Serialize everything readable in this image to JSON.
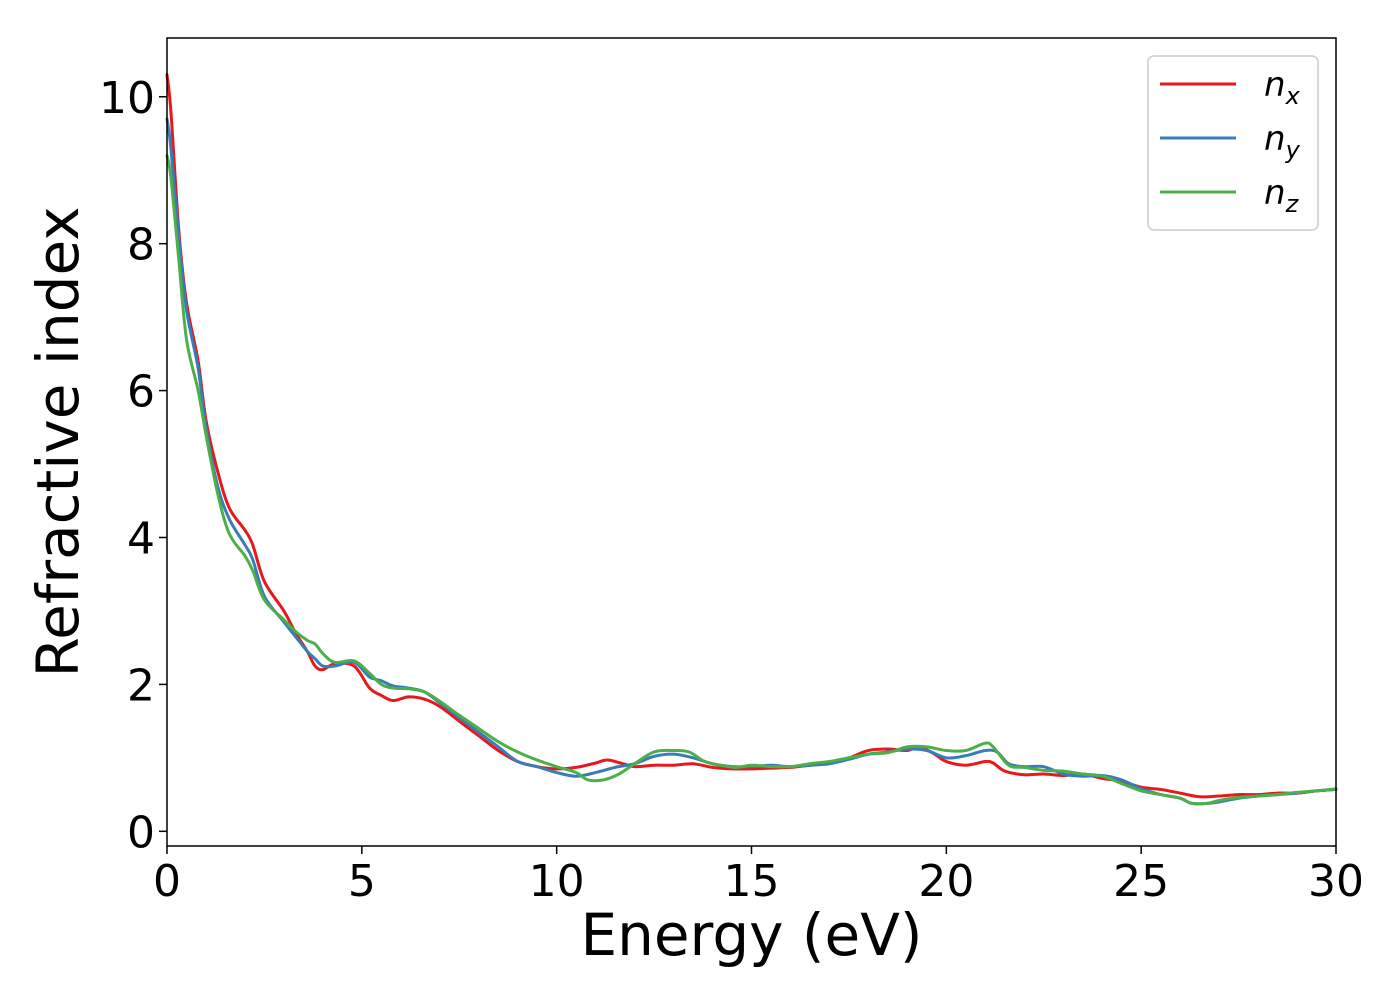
{
  "chart_data": {
    "type": "line",
    "title": "",
    "xlabel": "Energy (eV)",
    "ylabel": "Refractive index",
    "xlim": [
      0,
      30
    ],
    "ylim": [
      -0.2,
      10.8
    ],
    "xticks": [
      0,
      5,
      10,
      15,
      20,
      25,
      30
    ],
    "yticks": [
      0,
      2,
      4,
      6,
      8,
      10
    ],
    "xtick_labels": [
      "0",
      "5",
      "10",
      "15",
      "20",
      "25",
      "30"
    ],
    "ytick_labels": [
      "0",
      "2",
      "4",
      "6",
      "8",
      "10"
    ],
    "grid": false,
    "legend_position": "top-right",
    "series": [
      {
        "name": "n",
        "subscript": "x",
        "color": "#e41a1c",
        "x": [
          0,
          0.1,
          0.3,
          0.5,
          0.8,
          1.0,
          1.3,
          1.6,
          2.0,
          2.2,
          2.5,
          3.0,
          3.3,
          3.6,
          3.8,
          4.0,
          4.3,
          4.8,
          5.2,
          5.5,
          5.8,
          6.2,
          6.6,
          7.0,
          7.5,
          8.0,
          8.5,
          9.0,
          9.5,
          10.0,
          10.5,
          11.0,
          11.3,
          11.7,
          12.0,
          12.5,
          13.0,
          13.5,
          14.0,
          14.5,
          15.0,
          15.5,
          16.0,
          16.5,
          17.0,
          17.5,
          18.0,
          18.5,
          19.0,
          19.3,
          19.7,
          20.0,
          20.5,
          21.0,
          21.2,
          21.5,
          22.0,
          22.5,
          23.0,
          23.5,
          24.0,
          24.5,
          25.0,
          25.5,
          26.0,
          26.5,
          27.0,
          27.5,
          28.0,
          28.5,
          29.0,
          29.5,
          30.0
        ],
        "y": [
          10.3,
          9.8,
          8.2,
          7.2,
          6.4,
          5.6,
          4.9,
          4.4,
          4.1,
          3.9,
          3.4,
          3.0,
          2.7,
          2.45,
          2.25,
          2.2,
          2.28,
          2.25,
          1.95,
          1.85,
          1.78,
          1.83,
          1.8,
          1.7,
          1.5,
          1.3,
          1.1,
          0.95,
          0.88,
          0.85,
          0.87,
          0.93,
          0.97,
          0.92,
          0.88,
          0.9,
          0.9,
          0.92,
          0.87,
          0.85,
          0.85,
          0.86,
          0.87,
          0.9,
          0.93,
          1.0,
          1.1,
          1.12,
          1.1,
          1.15,
          1.05,
          0.95,
          0.9,
          0.95,
          0.93,
          0.82,
          0.77,
          0.78,
          0.76,
          0.78,
          0.72,
          0.68,
          0.6,
          0.57,
          0.52,
          0.47,
          0.48,
          0.5,
          0.5,
          0.52,
          0.52,
          0.55,
          0.57
        ]
      },
      {
        "name": "n",
        "subscript": "y",
        "color": "#377eb8",
        "x": [
          0,
          0.1,
          0.3,
          0.5,
          0.8,
          1.0,
          1.3,
          1.6,
          2.0,
          2.2,
          2.5,
          3.0,
          3.3,
          3.6,
          3.8,
          4.0,
          4.3,
          4.8,
          5.2,
          5.5,
          5.8,
          6.2,
          6.6,
          7.0,
          7.5,
          8.0,
          8.5,
          9.0,
          9.5,
          10.0,
          10.5,
          11.0,
          11.5,
          12.0,
          12.5,
          13.0,
          13.5,
          14.0,
          14.5,
          15.0,
          15.5,
          16.0,
          16.5,
          17.0,
          17.5,
          18.0,
          18.5,
          19.0,
          19.5,
          20.0,
          20.5,
          21.0,
          21.3,
          21.6,
          22.0,
          22.5,
          23.0,
          23.5,
          24.0,
          24.5,
          25.0,
          25.5,
          26.0,
          26.3,
          26.7,
          27.0,
          27.5,
          28.0,
          28.5,
          29.0,
          29.5,
          30.0
        ],
        "y": [
          9.7,
          9.3,
          8.1,
          7.1,
          6.3,
          5.5,
          4.7,
          4.25,
          3.9,
          3.7,
          3.2,
          2.85,
          2.65,
          2.45,
          2.35,
          2.25,
          2.25,
          2.3,
          2.1,
          2.05,
          1.98,
          1.95,
          1.9,
          1.75,
          1.55,
          1.35,
          1.15,
          0.95,
          0.88,
          0.8,
          0.75,
          0.8,
          0.87,
          0.92,
          1.02,
          1.05,
          1.0,
          0.92,
          0.88,
          0.88,
          0.9,
          0.88,
          0.9,
          0.92,
          0.98,
          1.05,
          1.08,
          1.12,
          1.1,
          1.0,
          1.03,
          1.1,
          1.08,
          0.92,
          0.88,
          0.88,
          0.78,
          0.75,
          0.76,
          0.7,
          0.58,
          0.5,
          0.45,
          0.38,
          0.38,
          0.4,
          0.45,
          0.48,
          0.5,
          0.52,
          0.55,
          0.57
        ]
      },
      {
        "name": "n",
        "subscript": "z",
        "color": "#4daf4a",
        "x": [
          0,
          0.1,
          0.3,
          0.5,
          0.8,
          1.0,
          1.3,
          1.6,
          2.0,
          2.2,
          2.5,
          3.0,
          3.3,
          3.6,
          3.8,
          4.0,
          4.3,
          4.8,
          5.2,
          5.5,
          5.8,
          6.2,
          6.6,
          7.0,
          7.5,
          8.0,
          8.5,
          9.0,
          9.5,
          10.0,
          10.5,
          10.8,
          11.2,
          11.6,
          12.0,
          12.5,
          13.0,
          13.4,
          13.8,
          14.2,
          14.6,
          15.0,
          15.5,
          16.0,
          16.5,
          17.0,
          17.5,
          18.0,
          18.5,
          19.0,
          19.5,
          20.0,
          20.5,
          21.0,
          21.2,
          21.6,
          22.0,
          22.5,
          23.0,
          23.5,
          24.0,
          24.5,
          25.0,
          25.5,
          26.0,
          26.3,
          26.7,
          27.0,
          27.5,
          28.0,
          28.5,
          29.0,
          29.5,
          30.0
        ],
        "y": [
          9.2,
          8.9,
          7.8,
          6.7,
          6.0,
          5.4,
          4.6,
          4.05,
          3.75,
          3.55,
          3.15,
          2.88,
          2.72,
          2.6,
          2.55,
          2.42,
          2.3,
          2.32,
          2.15,
          2.0,
          1.95,
          1.94,
          1.9,
          1.77,
          1.58,
          1.4,
          1.22,
          1.08,
          0.97,
          0.88,
          0.8,
          0.7,
          0.7,
          0.78,
          0.92,
          1.08,
          1.1,
          1.08,
          0.95,
          0.9,
          0.87,
          0.9,
          0.88,
          0.88,
          0.92,
          0.95,
          1.0,
          1.05,
          1.07,
          1.15,
          1.15,
          1.1,
          1.1,
          1.2,
          1.15,
          0.9,
          0.87,
          0.83,
          0.82,
          0.78,
          0.75,
          0.65,
          0.55,
          0.5,
          0.45,
          0.38,
          0.38,
          0.42,
          0.46,
          0.48,
          0.5,
          0.53,
          0.55,
          0.58
        ]
      }
    ]
  }
}
